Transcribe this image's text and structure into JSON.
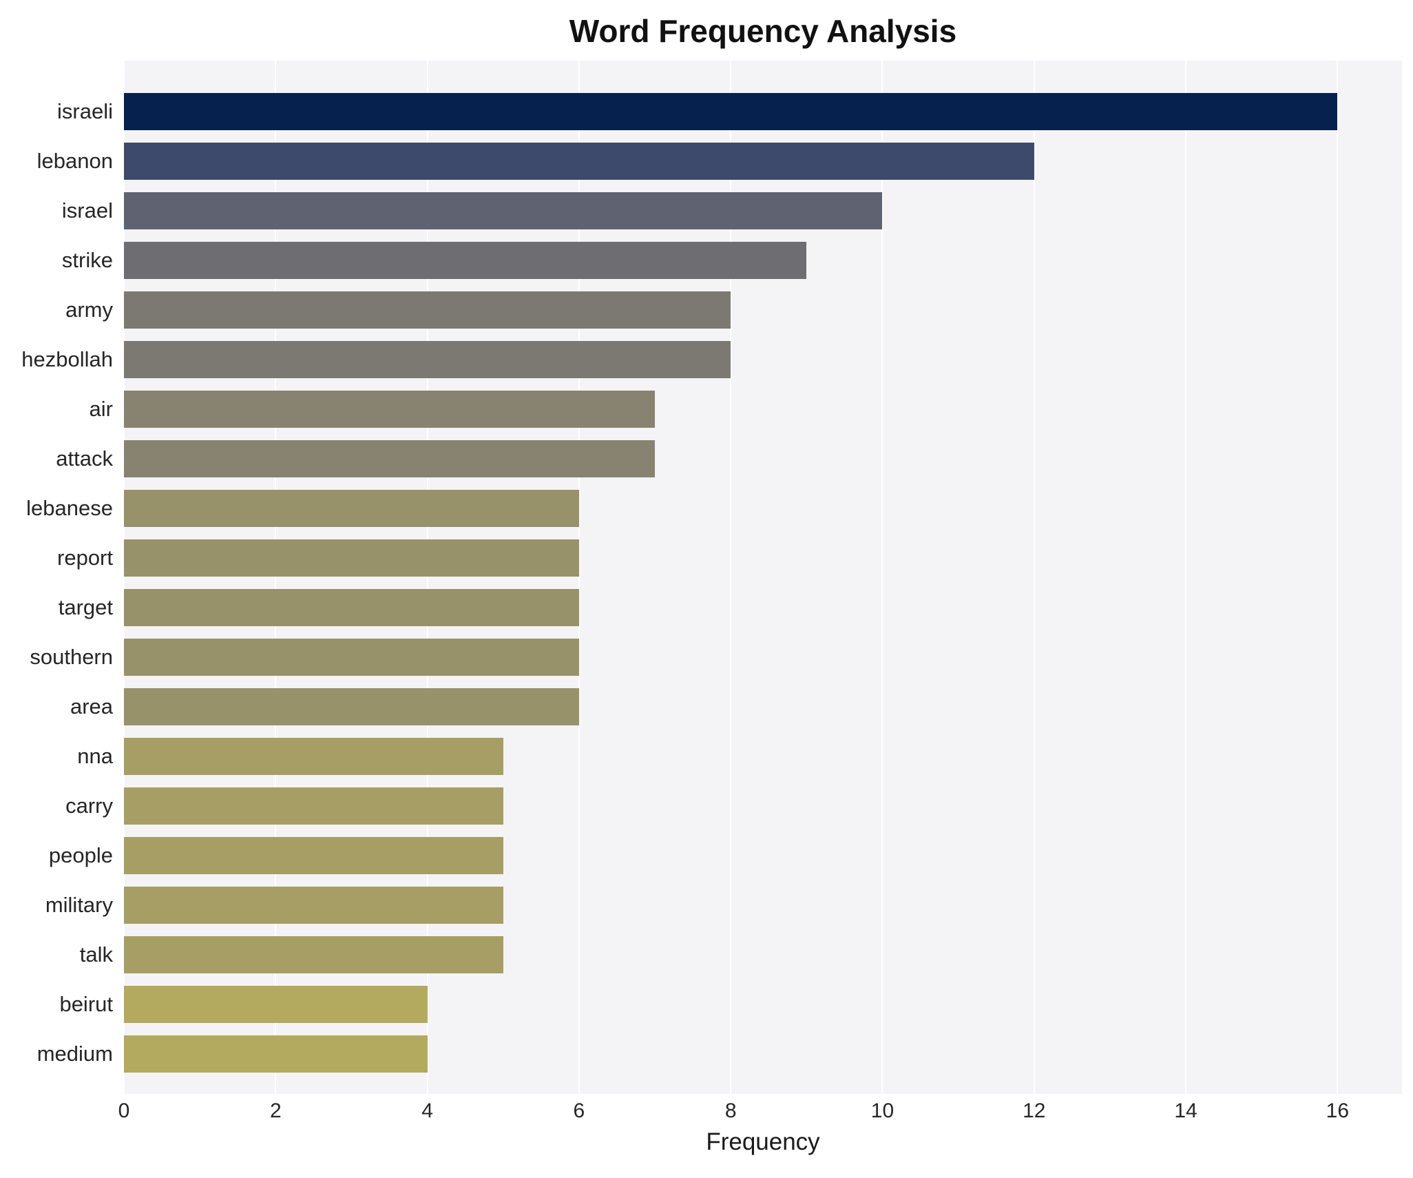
{
  "chart_data": {
    "type": "bar",
    "orientation": "horizontal",
    "title": "Word Frequency Analysis",
    "xlabel": "Frequency",
    "ylabel": "",
    "categories": [
      "israeli",
      "lebanon",
      "israel",
      "strike",
      "army",
      "hezbollah",
      "air",
      "attack",
      "lebanese",
      "report",
      "target",
      "southern",
      "area",
      "nna",
      "carry",
      "people",
      "military",
      "talk",
      "beirut",
      "medium"
    ],
    "values": [
      16,
      12,
      10,
      9,
      8,
      8,
      7,
      7,
      6,
      6,
      6,
      6,
      6,
      5,
      5,
      5,
      5,
      5,
      4,
      4
    ],
    "colors": [
      "#06214e",
      "#3e4a6b",
      "#5f6371",
      "#6e6d72",
      "#7b7972",
      "#7b7972",
      "#888270",
      "#888270",
      "#98926b",
      "#98926b",
      "#98926b",
      "#98926b",
      "#98926b",
      "#a79e66",
      "#a79e66",
      "#a79e66",
      "#a79e66",
      "#a79e66",
      "#b3a95f",
      "#b3a95f"
    ],
    "xticks": [
      0,
      2,
      4,
      6,
      8,
      10,
      12,
      14,
      16
    ],
    "xlim": [
      0,
      16.85
    ],
    "grid": true,
    "legend": false,
    "plot_background": "#f4f4f6",
    "gridline_color": "#ffffff"
  }
}
